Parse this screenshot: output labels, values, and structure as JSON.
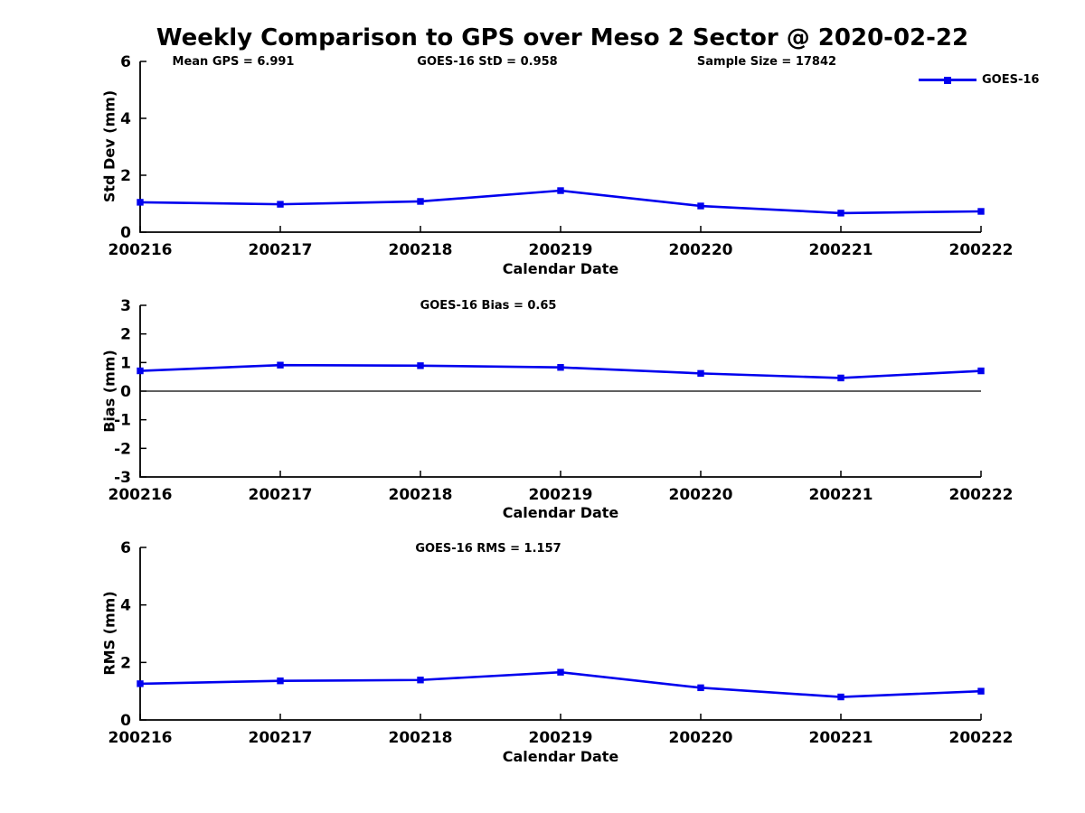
{
  "header": {
    "title": "Weekly Comparison to GPS over Meso 2 Sector @ 2020-02-22"
  },
  "legend": {
    "label": "GOES-16"
  },
  "colors": {
    "line": "#0000ee",
    "axis": "#000000",
    "text": "#000000"
  },
  "chart_data": [
    {
      "type": "line",
      "panel": "std-dev",
      "annotations": [
        "Mean GPS = 6.991",
        "GOES-16 StD = 0.958",
        "Sample Size = 17842"
      ],
      "categories": [
        "200216",
        "200217",
        "200218",
        "200219",
        "200220",
        "200221",
        "200222"
      ],
      "series": [
        {
          "name": "GOES-16",
          "values": [
            1.05,
            0.98,
            1.08,
            1.46,
            0.92,
            0.67,
            0.73
          ]
        }
      ],
      "xlabel": "Calendar Date",
      "ylabel": "Std Dev (mm)",
      "ylim": [
        0,
        6
      ],
      "yticks": [
        0,
        2,
        4,
        6
      ],
      "legend_position": "upper-right",
      "grid": false
    },
    {
      "type": "line",
      "panel": "bias",
      "title": "GOES-16 Bias  = 0.65",
      "categories": [
        "200216",
        "200217",
        "200218",
        "200219",
        "200220",
        "200221",
        "200222"
      ],
      "series": [
        {
          "name": "GOES-16",
          "values": [
            0.71,
            0.91,
            0.89,
            0.83,
            0.62,
            0.46,
            0.71
          ]
        }
      ],
      "xlabel": "Calendar Date",
      "ylabel": "Bias (mm)",
      "ylim": [
        -3,
        3
      ],
      "yticks": [
        -3,
        -2,
        -1,
        0,
        1,
        2,
        3
      ],
      "zero_line": true,
      "grid": false
    },
    {
      "type": "line",
      "panel": "rms",
      "title": "GOES-16 RMS = 1.157",
      "categories": [
        "200216",
        "200217",
        "200218",
        "200219",
        "200220",
        "200221",
        "200222"
      ],
      "series": [
        {
          "name": "GOES-16",
          "values": [
            1.26,
            1.36,
            1.39,
            1.66,
            1.12,
            0.8,
            1.0
          ]
        }
      ],
      "xlabel": "Calendar Date",
      "ylabel": "RMS (mm)",
      "ylim": [
        0,
        6
      ],
      "yticks": [
        0,
        2,
        4,
        6
      ],
      "grid": false
    }
  ]
}
